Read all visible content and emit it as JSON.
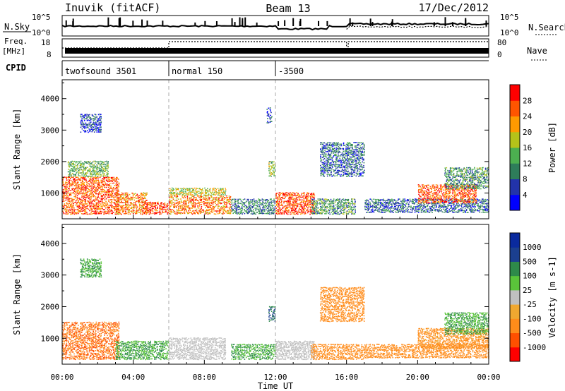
{
  "header": {
    "station": "Inuvik (fitACF)",
    "beam": "Beam 13",
    "date": "17/Dec/2012"
  },
  "summary": {
    "nsky_label": "N.Sky",
    "freq_label_top": "Freq.",
    "freq_label_unit": "[MHz]",
    "cpid_label": "CPID",
    "nsearch_label": "N.Search",
    "nave_label": "Nave",
    "noise_ticks": [
      "10^5",
      "10^0"
    ],
    "freq_ticks": [
      "18",
      "8"
    ],
    "nave_ticks": [
      "80",
      "0"
    ],
    "cpid_segments": [
      {
        "label": "twofsound 3501",
        "start_hour": 0
      },
      {
        "label": "normal 150",
        "start_hour": 6
      },
      {
        "label": "-3500",
        "start_hour": 12
      }
    ]
  },
  "colors": {
    "power_scale": [
      "#0000ff",
      "#2233aa",
      "#2e7d5a",
      "#4caf50",
      "#b5c21a",
      "#ff9a00",
      "#ff5500",
      "#ff0000"
    ],
    "velocity_scale": [
      "#ff0000",
      "#ff5000",
      "#ff8c1a",
      "#f0a830",
      "#c0c0c0",
      "#5ac43a",
      "#2e8a4a",
      "#1b3f8f",
      "#0a2a9e"
    ],
    "ground_scatter": "#c0c0c0"
  },
  "chart_data": [
    {
      "type": "heatmap",
      "name": "power",
      "xlabel": "",
      "ylabel": "Slant Range [km]",
      "xlim": [
        0,
        24
      ],
      "ylim": [
        180,
        4600
      ],
      "x_ticks": [
        "00:00",
        "04:00",
        "08:00",
        "12:00",
        "16:00",
        "20:00",
        "00:00"
      ],
      "y_ticks": [
        "1000",
        "2000",
        "3000",
        "4000"
      ],
      "colorbar": {
        "label": "Power [dB]",
        "ticks": [
          "28",
          "24",
          "20",
          "16",
          "12",
          "8",
          "4"
        ],
        "range": [
          0,
          32
        ]
      },
      "scatter_regions": [
        {
          "t0": 0.0,
          "t1": 3.2,
          "r0": 300,
          "r1": 1500,
          "level": 26
        },
        {
          "t0": 0.3,
          "t1": 2.6,
          "r0": 1500,
          "r1": 2000,
          "level": 14
        },
        {
          "t0": 1.0,
          "t1": 2.2,
          "r0": 2900,
          "r1": 3500,
          "level": 6
        },
        {
          "t0": 3.0,
          "t1": 4.8,
          "r0": 300,
          "r1": 1000,
          "level": 24
        },
        {
          "t0": 4.5,
          "t1": 6.0,
          "r0": 300,
          "r1": 700,
          "level": 28
        },
        {
          "t0": 6.0,
          "t1": 9.5,
          "r0": 300,
          "r1": 900,
          "level": 24
        },
        {
          "t0": 6.0,
          "t1": 9.2,
          "r0": 900,
          "r1": 1150,
          "level": 18
        },
        {
          "t0": 9.5,
          "t1": 12.0,
          "r0": 300,
          "r1": 800,
          "level": 10
        },
        {
          "t0": 11.6,
          "t1": 12.0,
          "r0": 1500,
          "r1": 2000,
          "level": 16
        },
        {
          "t0": 11.5,
          "t1": 11.8,
          "r0": 3200,
          "r1": 3700,
          "level": 6
        },
        {
          "t0": 12.0,
          "t1": 14.2,
          "r0": 300,
          "r1": 1000,
          "level": 27
        },
        {
          "t0": 14.0,
          "t1": 16.5,
          "r0": 300,
          "r1": 800,
          "level": 12
        },
        {
          "t0": 14.5,
          "t1": 17.0,
          "r0": 1500,
          "r1": 2600,
          "level": 8
        },
        {
          "t0": 17.0,
          "t1": 24.0,
          "r0": 350,
          "r1": 800,
          "level": 8
        },
        {
          "t0": 20.0,
          "t1": 23.3,
          "r0": 650,
          "r1": 1250,
          "level": 26
        },
        {
          "t0": 21.5,
          "t1": 24.0,
          "r0": 1100,
          "r1": 1800,
          "level": 12
        }
      ]
    },
    {
      "type": "heatmap",
      "name": "velocity",
      "xlabel": "Time UT",
      "ylabel": "Slant Range [km]",
      "xlim": [
        0,
        24
      ],
      "ylim": [
        180,
        4600
      ],
      "x_ticks": [
        "00:00",
        "04:00",
        "08:00",
        "12:00",
        "16:00",
        "20:00",
        "00:00"
      ],
      "y_ticks": [
        "1000",
        "2000",
        "3000",
        "4000"
      ],
      "colorbar": {
        "label": "Velocity [m s-1]",
        "ticks": [
          "1000",
          "500",
          "100",
          "25",
          "-25",
          "-100",
          "-500",
          "-1000"
        ],
        "range": [
          -1000,
          1000
        ]
      },
      "scatter_regions": [
        {
          "t0": 0.0,
          "t1": 3.2,
          "r0": 300,
          "r1": 1500,
          "level": -500
        },
        {
          "t0": 1.0,
          "t1": 2.2,
          "r0": 2900,
          "r1": 3500,
          "level": 100
        },
        {
          "t0": 3.0,
          "t1": 6.0,
          "r0": 300,
          "r1": 900,
          "level": 100
        },
        {
          "t0": 6.0,
          "t1": 9.2,
          "r0": 300,
          "r1": 1000,
          "level": 0
        },
        {
          "t0": 9.5,
          "t1": 12.0,
          "r0": 300,
          "r1": 800,
          "level": 100
        },
        {
          "t0": 11.6,
          "t1": 12.0,
          "r0": 1500,
          "r1": 2000,
          "level": 500
        },
        {
          "t0": 12.0,
          "t1": 14.2,
          "r0": 300,
          "r1": 900,
          "level": 0
        },
        {
          "t0": 14.0,
          "t1": 17.0,
          "r0": 300,
          "r1": 800,
          "level": -300
        },
        {
          "t0": 14.5,
          "t1": 17.0,
          "r0": 1500,
          "r1": 2600,
          "level": -200
        },
        {
          "t0": 17.0,
          "t1": 24.0,
          "r0": 350,
          "r1": 800,
          "level": -250
        },
        {
          "t0": 20.0,
          "t1": 24.0,
          "r0": 650,
          "r1": 1300,
          "level": -150
        },
        {
          "t0": 21.5,
          "t1": 24.0,
          "r0": 1100,
          "r1": 1800,
          "level": 100
        }
      ]
    }
  ]
}
